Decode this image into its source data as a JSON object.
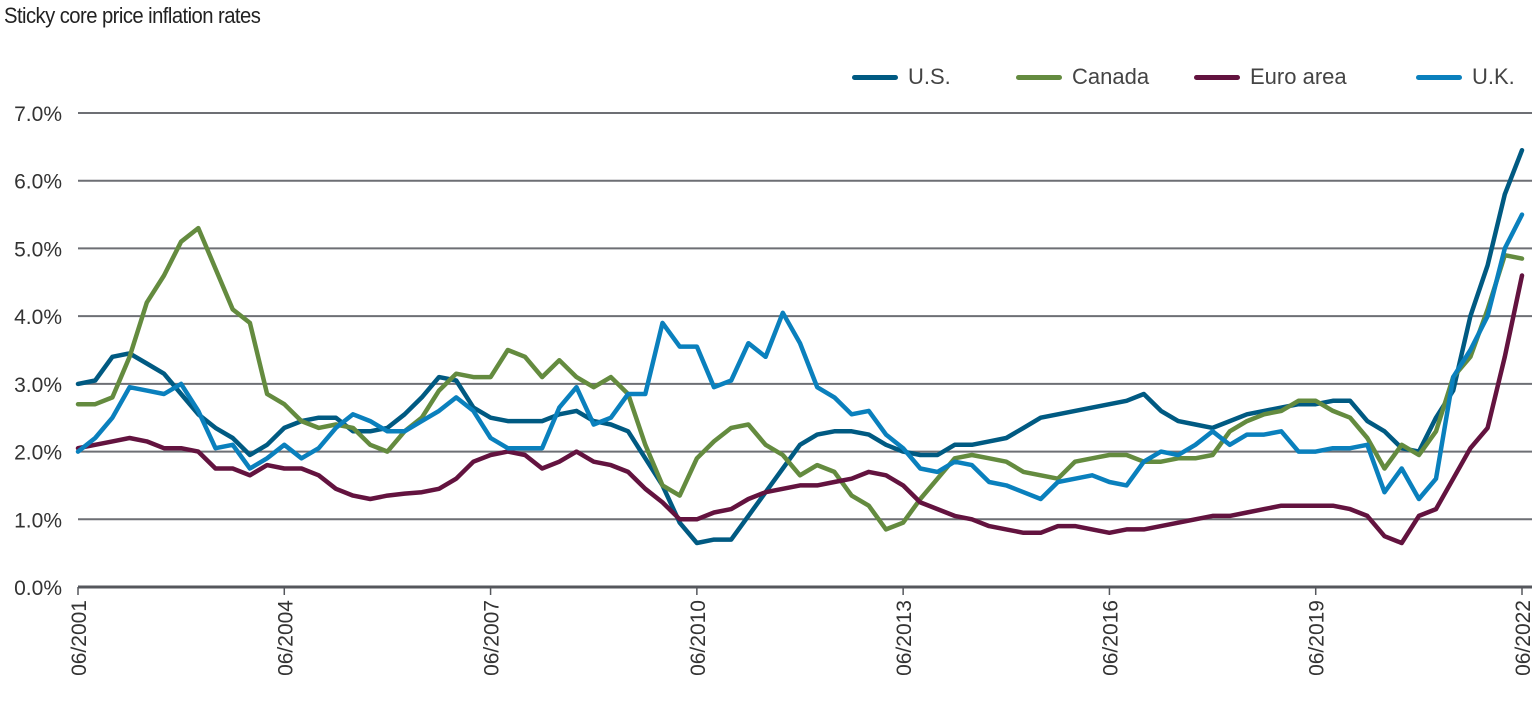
{
  "title": "Sticky core price inflation rates",
  "chart_data": {
    "type": "line",
    "title": "Sticky core price inflation rates",
    "xlabel": "",
    "ylabel": "",
    "ylim": [
      0,
      7
    ],
    "yticks": [
      "0.0%",
      "1.0%",
      "2.0%",
      "3.0%",
      "4.0%",
      "5.0%",
      "6.0%",
      "7.0%"
    ],
    "xticks": [
      "06/2001",
      "06/2004",
      "06/2007",
      "06/2010",
      "06/2013",
      "06/2016",
      "06/2019",
      "06/2022"
    ],
    "grid": "horizontal",
    "legend_position": "top-right",
    "x": [
      "2001-06",
      "2001-09",
      "2001-12",
      "2002-03",
      "2002-06",
      "2002-09",
      "2002-12",
      "2003-03",
      "2003-06",
      "2003-09",
      "2003-12",
      "2004-03",
      "2004-06",
      "2004-09",
      "2004-12",
      "2005-03",
      "2005-06",
      "2005-09",
      "2005-12",
      "2006-03",
      "2006-06",
      "2006-09",
      "2006-12",
      "2007-03",
      "2007-06",
      "2007-09",
      "2007-12",
      "2008-03",
      "2008-06",
      "2008-09",
      "2008-12",
      "2009-03",
      "2009-06",
      "2009-09",
      "2009-12",
      "2010-03",
      "2010-06",
      "2010-09",
      "2010-12",
      "2011-03",
      "2011-06",
      "2011-09",
      "2011-12",
      "2012-03",
      "2012-06",
      "2012-09",
      "2012-12",
      "2013-03",
      "2013-06",
      "2013-09",
      "2013-12",
      "2014-03",
      "2014-06",
      "2014-09",
      "2014-12",
      "2015-03",
      "2015-06",
      "2015-09",
      "2015-12",
      "2016-03",
      "2016-06",
      "2016-09",
      "2016-12",
      "2017-03",
      "2017-06",
      "2017-09",
      "2017-12",
      "2018-03",
      "2018-06",
      "2018-09",
      "2018-12",
      "2019-03",
      "2019-06",
      "2019-09",
      "2019-12",
      "2020-03",
      "2020-06",
      "2020-09",
      "2020-12",
      "2021-03",
      "2021-06",
      "2021-09",
      "2021-12",
      "2022-03",
      "2022-06"
    ],
    "series": [
      {
        "name": "U.S.",
        "color": "#005a82",
        "values": [
          3.0,
          3.05,
          3.4,
          3.45,
          3.3,
          3.15,
          2.85,
          2.55,
          2.35,
          2.2,
          1.95,
          2.1,
          2.35,
          2.45,
          2.5,
          2.5,
          2.3,
          2.3,
          2.35,
          2.55,
          2.8,
          3.1,
          3.05,
          2.65,
          2.5,
          2.45,
          2.45,
          2.45,
          2.55,
          2.6,
          2.45,
          2.4,
          2.3,
          1.9,
          1.5,
          0.95,
          0.65,
          0.7,
          0.7,
          1.05,
          1.4,
          1.75,
          2.1,
          2.25,
          2.3,
          2.3,
          2.25,
          2.1,
          2.0,
          1.95,
          1.95,
          2.1,
          2.1,
          2.15,
          2.2,
          2.35,
          2.5,
          2.55,
          2.6,
          2.65,
          2.7,
          2.75,
          2.85,
          2.6,
          2.45,
          2.4,
          2.35,
          2.45,
          2.55,
          2.6,
          2.65,
          2.7,
          2.7,
          2.75,
          2.75,
          2.45,
          2.3,
          2.05,
          2.0,
          2.5,
          2.9,
          4.0,
          4.75,
          5.8,
          6.45
        ]
      },
      {
        "name": "Canada",
        "color": "#648b3f",
        "values": [
          2.7,
          2.7,
          2.8,
          3.4,
          4.2,
          4.6,
          5.1,
          5.3,
          4.7,
          4.1,
          3.9,
          2.85,
          2.7,
          2.45,
          2.35,
          2.4,
          2.35,
          2.1,
          2.0,
          2.3,
          2.5,
          2.9,
          3.15,
          3.1,
          3.1,
          3.5,
          3.4,
          3.1,
          3.35,
          3.1,
          2.95,
          3.1,
          2.85,
          2.1,
          1.5,
          1.35,
          1.9,
          2.15,
          2.35,
          2.4,
          2.1,
          1.95,
          1.65,
          1.8,
          1.7,
          1.35,
          1.2,
          0.85,
          0.95,
          1.3,
          1.6,
          1.9,
          1.95,
          1.9,
          1.85,
          1.7,
          1.65,
          1.6,
          1.85,
          1.9,
          1.95,
          1.95,
          1.85,
          1.85,
          1.9,
          1.9,
          1.95,
          2.3,
          2.45,
          2.55,
          2.6,
          2.75,
          2.75,
          2.6,
          2.5,
          2.2,
          1.75,
          2.1,
          1.95,
          2.3,
          3.1,
          3.4,
          4.1,
          4.9,
          4.85
        ]
      },
      {
        "name": "Euro area",
        "color": "#63133f",
        "values": [
          2.05,
          2.1,
          2.15,
          2.2,
          2.15,
          2.05,
          2.05,
          2.0,
          1.75,
          1.75,
          1.65,
          1.8,
          1.75,
          1.75,
          1.65,
          1.45,
          1.35,
          1.3,
          1.35,
          1.38,
          1.4,
          1.45,
          1.6,
          1.85,
          1.95,
          2.0,
          1.95,
          1.75,
          1.85,
          2.0,
          1.85,
          1.8,
          1.7,
          1.45,
          1.25,
          1.0,
          1.0,
          1.1,
          1.15,
          1.3,
          1.4,
          1.45,
          1.5,
          1.5,
          1.55,
          1.6,
          1.7,
          1.65,
          1.5,
          1.25,
          1.15,
          1.05,
          1.0,
          0.9,
          0.85,
          0.8,
          0.8,
          0.9,
          0.9,
          0.85,
          0.8,
          0.85,
          0.85,
          0.9,
          0.95,
          1.0,
          1.05,
          1.05,
          1.1,
          1.15,
          1.2,
          1.2,
          1.2,
          1.2,
          1.15,
          1.05,
          0.75,
          0.65,
          1.05,
          1.15,
          1.6,
          2.05,
          2.35,
          3.4,
          4.6
        ]
      },
      {
        "name": "U.K.",
        "color": "#0a80bd",
        "values": [
          2.0,
          2.2,
          2.5,
          2.95,
          2.9,
          2.85,
          3.0,
          2.6,
          2.05,
          2.1,
          1.75,
          1.9,
          2.1,
          1.9,
          2.05,
          2.35,
          2.55,
          2.45,
          2.3,
          2.3,
          2.45,
          2.6,
          2.8,
          2.6,
          2.2,
          2.05,
          2.05,
          2.05,
          2.65,
          2.95,
          2.4,
          2.5,
          2.85,
          2.85,
          3.9,
          3.55,
          3.55,
          2.95,
          3.05,
          3.6,
          3.4,
          4.05,
          3.6,
          2.95,
          2.8,
          2.55,
          2.6,
          2.25,
          2.05,
          1.75,
          1.7,
          1.85,
          1.8,
          1.55,
          1.5,
          1.4,
          1.3,
          1.55,
          1.6,
          1.65,
          1.55,
          1.5,
          1.85,
          2.0,
          1.95,
          2.1,
          2.3,
          2.1,
          2.25,
          2.25,
          2.3,
          2.0,
          2.0,
          2.05,
          2.05,
          2.1,
          1.4,
          1.75,
          1.3,
          1.6,
          3.1,
          3.5,
          4.0,
          5.0,
          5.5
        ]
      }
    ]
  }
}
